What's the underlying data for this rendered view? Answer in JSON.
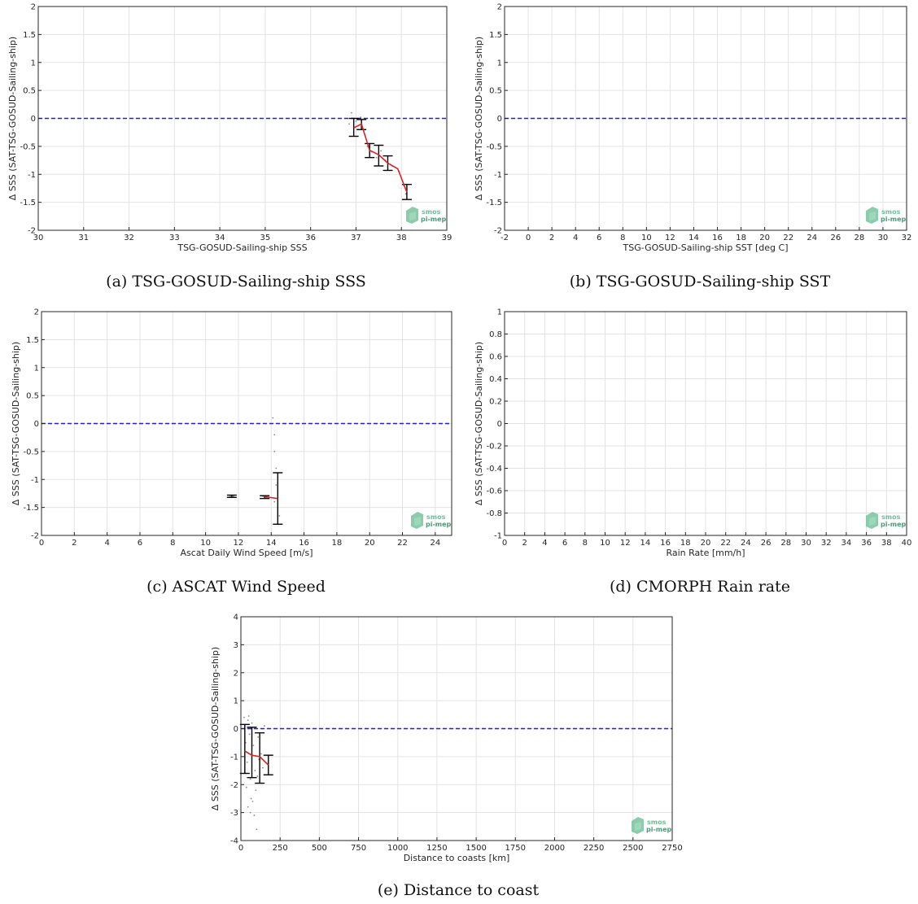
{
  "colors": {
    "zero_line": "#1f1fe6",
    "median_line": "#e02020",
    "errorbar": "#000000",
    "scatter": "#8a8a8a",
    "grid": "#e3e3e3",
    "logo": "#6fbf97"
  },
  "logo": {
    "line1": "smos",
    "line2": "pi-mep"
  },
  "chart_data": [
    {
      "type": "scatter",
      "caption": "(a) TSG-GOSUD-Sailing-ship SSS",
      "xlabel": "TSG-GOSUD-Sailing-ship SSS",
      "ylabel": "Δ SSS (SAT-TSG-GOSUD-Sailing-ship)",
      "xlim": [
        30,
        39
      ],
      "ylim": [
        -2,
        2
      ],
      "xticks": [
        "30",
        "31",
        "32",
        "33",
        "34",
        "35",
        "36",
        "37",
        "38",
        "39"
      ],
      "yticks": [
        "-2",
        "-1.5",
        "-1",
        "-0.5",
        "0",
        "0.5",
        "1",
        "1.5",
        "2"
      ],
      "grid": true,
      "zero_line": 0,
      "median": {
        "x": [
          36.95,
          37.12,
          37.3,
          37.5,
          37.7,
          37.92,
          38.12
        ],
        "y": [
          -0.17,
          -0.1,
          -0.57,
          -0.65,
          -0.8,
          -0.9,
          -1.32
        ]
      },
      "errorbars": [
        {
          "x": 36.95,
          "low": -0.32,
          "high": 0.0
        },
        {
          "x": 37.12,
          "low": -0.2,
          "high": -0.02
        },
        {
          "x": 37.3,
          "low": -0.7,
          "high": -0.45
        },
        {
          "x": 37.5,
          "low": -0.85,
          "high": -0.48
        },
        {
          "x": 37.7,
          "low": -0.93,
          "high": -0.67
        },
        {
          "x": 38.12,
          "low": -1.45,
          "high": -1.18
        }
      ],
      "scatter": {
        "x": [
          36.9,
          37.0,
          37.05,
          37.1,
          37.2,
          37.25,
          37.35,
          37.45,
          37.55,
          37.65,
          37.8,
          37.95,
          38.05,
          38.1,
          36.85
        ],
        "y": [
          0.1,
          -0.05,
          -0.2,
          0.02,
          -0.3,
          -0.5,
          -0.6,
          -0.7,
          -0.58,
          -0.75,
          -0.85,
          -0.95,
          -1.2,
          -1.35,
          -0.1
        ]
      }
    },
    {
      "type": "scatter",
      "caption": "(b) TSG-GOSUD-Sailing-ship SST",
      "xlabel": "TSG-GOSUD-Sailing-ship SST [deg C]",
      "ylabel": "Δ SSS (SAT-TSG-GOSUD-Sailing-ship)",
      "xlim": [
        -2,
        32
      ],
      "ylim": [
        -2,
        2
      ],
      "xticks": [
        "-2",
        "0",
        "2",
        "4",
        "6",
        "8",
        "10",
        "12",
        "14",
        "16",
        "18",
        "20",
        "22",
        "24",
        "26",
        "28",
        "30",
        "32"
      ],
      "yticks": [
        "-2",
        "-1.5",
        "-1",
        "-0.5",
        "0",
        "0.5",
        "1",
        "1.5",
        "2"
      ],
      "grid": true,
      "zero_line": 0
    },
    {
      "type": "scatter",
      "caption": "(c) ASCAT Wind Speed",
      "xlabel": "Ascat Daily Wind Speed [m/s]",
      "ylabel": "Δ SSS (SAT-TSG-GOSUD-Sailing-ship)",
      "xlim": [
        0,
        25
      ],
      "ylim": [
        -2,
        2
      ],
      "xticks": [
        "0",
        "2",
        "4",
        "6",
        "8",
        "10",
        "12",
        "14",
        "16",
        "18",
        "20",
        "22",
        "24"
      ],
      "yticks": [
        "-2",
        "-1.5",
        "-1",
        "-0.5",
        "0",
        "0.5",
        "1",
        "1.5",
        "2"
      ],
      "grid": true,
      "zero_line": 0,
      "median": {
        "x": [
          13.6,
          14.4
        ],
        "y": [
          -1.31,
          -1.34
        ]
      },
      "errorbars": [
        {
          "x": 11.6,
          "low": -1.32,
          "high": -1.28
        },
        {
          "x": 13.6,
          "low": -1.34,
          "high": -1.29
        },
        {
          "x": 14.4,
          "low": -1.8,
          "high": -0.88
        }
      ],
      "scatter": {
        "x": [
          11.5,
          11.7,
          13.5,
          13.7,
          14.1,
          14.2,
          14.2,
          14.3,
          14.3,
          14.2,
          14.4,
          14.5
        ],
        "y": [
          -1.3,
          -1.3,
          -1.3,
          -1.33,
          0.1,
          -0.2,
          -0.5,
          -0.8,
          -1.1,
          -1.4,
          -1.5,
          -1.65
        ]
      }
    },
    {
      "type": "scatter",
      "caption": "(d) CMORPH Rain rate",
      "xlabel": "Rain Rate [mm/h]",
      "ylabel": "Δ SSS (SAT-TSG-GOSUD-Sailing-ship)",
      "xlim": [
        0,
        40
      ],
      "ylim": [
        -1,
        1
      ],
      "xticks": [
        "0",
        "2",
        "4",
        "6",
        "8",
        "10",
        "12",
        "14",
        "16",
        "18",
        "20",
        "22",
        "24",
        "26",
        "28",
        "30",
        "32",
        "34",
        "36",
        "38",
        "40"
      ],
      "yticks": [
        "-1",
        "-0.8",
        "-0.6",
        "-0.4",
        "-0.2",
        "0",
        "0.2",
        "0.4",
        "0.6",
        "0.8",
        "1"
      ],
      "grid": true
    },
    {
      "type": "scatter",
      "caption": "(e) Distance to coast",
      "xlabel": "Distance to coasts [km]",
      "ylabel": "Δ SSS (SAT-TSG-GOSUD-Sailing-ship)",
      "xlim": [
        0,
        2750
      ],
      "ylim": [
        -4,
        4
      ],
      "xticks": [
        "0",
        "250",
        "500",
        "750",
        "1000",
        "1250",
        "1500",
        "1750",
        "2000",
        "2250",
        "2500",
        "2750"
      ],
      "yticks": [
        "-4",
        "-3",
        "-2",
        "-1",
        "0",
        "1",
        "2",
        "3",
        "4"
      ],
      "grid": true,
      "zero_line": 0,
      "median": {
        "x": [
          25,
          70,
          120,
          175
        ],
        "y": [
          -0.8,
          -0.95,
          -1.0,
          -1.3
        ]
      },
      "errorbars": [
        {
          "x": 25,
          "low": -1.6,
          "high": 0.15
        },
        {
          "x": 70,
          "low": -1.75,
          "high": 0.05
        },
        {
          "x": 120,
          "low": -1.95,
          "high": -0.15
        },
        {
          "x": 175,
          "low": -1.65,
          "high": -0.95
        }
      ],
      "scatter": {
        "x": [
          20,
          30,
          40,
          45,
          50,
          55,
          60,
          65,
          70,
          80,
          85,
          90,
          100,
          110,
          115,
          130,
          140,
          150,
          95,
          60,
          75,
          105,
          35,
          45
        ],
        "y": [
          0.4,
          -0.5,
          -1.2,
          -2.8,
          0.45,
          -0.2,
          -1.8,
          -2.5,
          0.2,
          -0.6,
          -3.1,
          -1.5,
          -3.6,
          -0.3,
          -1.1,
          -0.9,
          -1.4,
          0.1,
          -2.2,
          -3.0,
          -2.6,
          -1.7,
          -2.1,
          0.3
        ]
      }
    }
  ]
}
